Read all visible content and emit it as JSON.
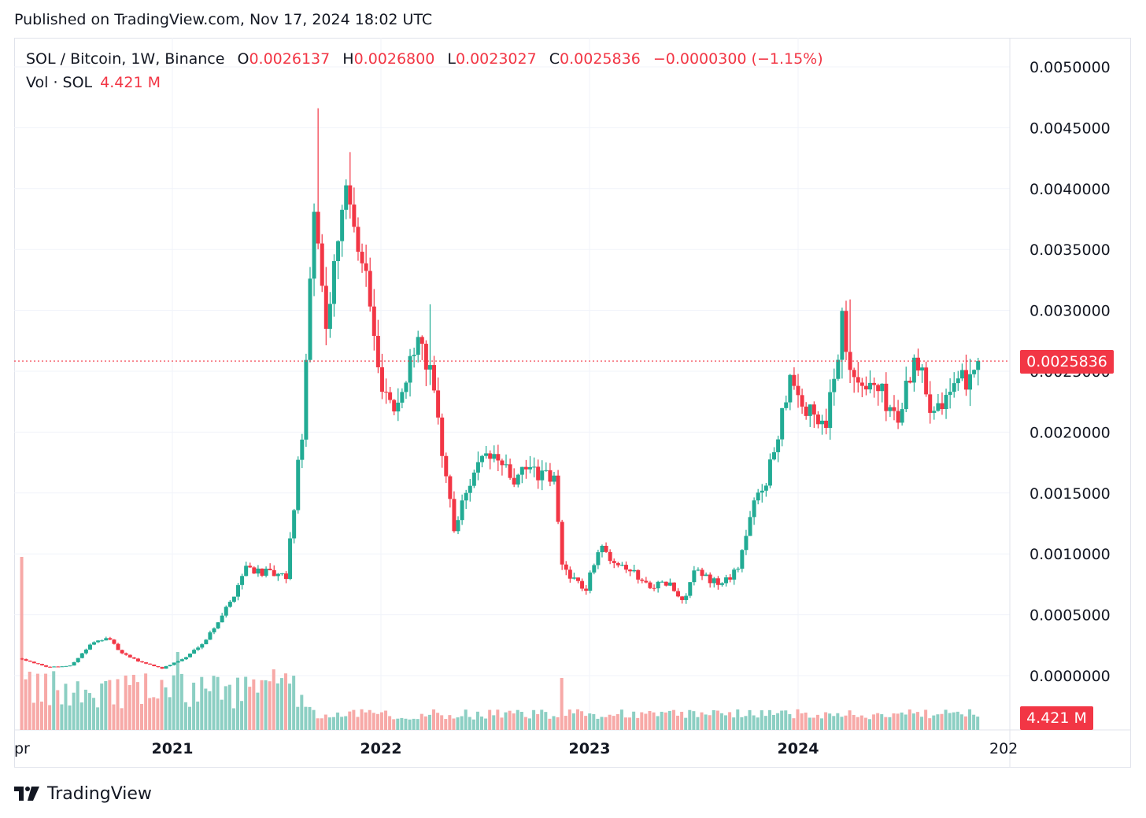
{
  "header": {
    "published": "Published on TradingView.com, Nov 17, 2024 18:02 UTC"
  },
  "legend": {
    "symbol": "SOL / Bitcoin, 1W, Binance",
    "open_label": "O",
    "open": "0.0026137",
    "high_label": "H",
    "high": "0.0026800",
    "low_label": "L",
    "low": "0.0023027",
    "close_label": "C",
    "close": "0.0025836",
    "change": "−0.0000300 (−1.15%)"
  },
  "volume_legend": {
    "label": "Vol · SOL",
    "value": "4.421 M"
  },
  "price_tag": "0.0025836",
  "volume_tag": "4.421 M",
  "footer": {
    "brand": "TradingView"
  },
  "colors": {
    "up": "#22ab94",
    "down": "#f23645",
    "up_volume": "#8ccfc3",
    "down_volume": "#f7a9a7"
  },
  "chart_data": {
    "type": "candlestick",
    "title": "SOL / Bitcoin, 1W, Binance",
    "xlabel": "",
    "ylabel": "",
    "x_tick_labels": [
      "pr",
      "2021",
      "2022",
      "2023",
      "2024",
      "202"
    ],
    "y_tick_labels": [
      "0.0050000",
      "0.0045000",
      "0.0040000",
      "0.0035000",
      "0.0030000",
      "0.0025000",
      "0.0020000",
      "0.0015000",
      "0.0010000",
      "0.0005000",
      "0.0000000"
    ],
    "ylim": [
      0,
      0.005
    ],
    "last_price": 0.0025836,
    "last_volume": "4.421 M",
    "grid": true,
    "anchors": [
      [
        "2020-04-13",
        0.00014
      ],
      [
        "2020-05-25",
        7e-05
      ],
      [
        "2020-07-06",
        8e-05
      ],
      [
        "2020-08-10",
        0.00025
      ],
      [
        "2020-09-07",
        0.00032
      ],
      [
        "2020-10-05",
        0.00018
      ],
      [
        "2020-11-02",
        0.00012
      ],
      [
        "2020-12-14",
        6e-05
      ],
      [
        "2021-01-25",
        0.00015
      ],
      [
        "2021-03-01",
        0.0003
      ],
      [
        "2021-04-12",
        0.0006
      ],
      [
        "2021-05-10",
        0.0009
      ],
      [
        "2021-06-07",
        0.00085
      ],
      [
        "2021-07-19",
        0.0008
      ],
      [
        "2021-08-16",
        0.002
      ],
      [
        "2021-09-06",
        0.0037
      ],
      [
        "2021-09-27",
        0.0029
      ],
      [
        "2021-10-25",
        0.0039
      ],
      [
        "2021-11-15",
        0.0038
      ],
      [
        "2021-12-06",
        0.0033
      ],
      [
        "2021-12-27",
        0.0025
      ],
      [
        "2022-01-24",
        0.0022
      ],
      [
        "2022-02-14",
        0.0024
      ],
      [
        "2022-03-07",
        0.0029
      ],
      [
        "2022-04-04",
        0.0023
      ],
      [
        "2022-05-09",
        0.0012
      ],
      [
        "2022-06-13",
        0.0017
      ],
      [
        "2022-07-18",
        0.0018
      ],
      [
        "2022-08-22",
        0.0016
      ],
      [
        "2022-09-19",
        0.0017
      ],
      [
        "2022-10-31",
        0.0016
      ],
      [
        "2022-11-14",
        0.0009
      ],
      [
        "2022-12-26",
        0.0007
      ],
      [
        "2023-01-16",
        0.00105
      ],
      [
        "2023-03-06",
        0.0009
      ],
      [
        "2023-04-10",
        0.00075
      ],
      [
        "2023-05-22",
        0.00075
      ],
      [
        "2023-06-12",
        0.0006
      ],
      [
        "2023-07-03",
        0.00085
      ],
      [
        "2023-08-21",
        0.00075
      ],
      [
        "2023-09-18",
        0.0009
      ],
      [
        "2023-10-16",
        0.0014
      ],
      [
        "2023-11-13",
        0.0017
      ],
      [
        "2023-12-18",
        0.0025
      ],
      [
        "2024-01-15",
        0.00215
      ],
      [
        "2024-02-19",
        0.0021
      ],
      [
        "2024-03-18",
        0.0029
      ],
      [
        "2024-04-15",
        0.00235
      ],
      [
        "2024-05-13",
        0.0024
      ],
      [
        "2024-06-24",
        0.0021
      ],
      [
        "2024-07-22",
        0.00265
      ],
      [
        "2024-08-19",
        0.00225
      ],
      [
        "2024-10-07",
        0.00235
      ],
      [
        "2024-11-11",
        0.00261
      ]
    ],
    "spikes": [
      {
        "date": "2021-09-13",
        "high": 0.00466
      },
      {
        "date": "2021-11-08",
        "high": 0.0043
      },
      {
        "date": "2022-03-28",
        "high": 0.00305
      },
      {
        "date": "2024-04-01",
        "high": 0.00309
      }
    ],
    "volume_spikes": [
      {
        "date": "2020-04-13",
        "relative": 1.0
      },
      {
        "date": "2021-01-11",
        "relative": 0.45
      },
      {
        "date": "2021-06-28",
        "relative": 0.35
      },
      {
        "date": "2022-11-14",
        "relative": 0.3
      }
    ]
  }
}
